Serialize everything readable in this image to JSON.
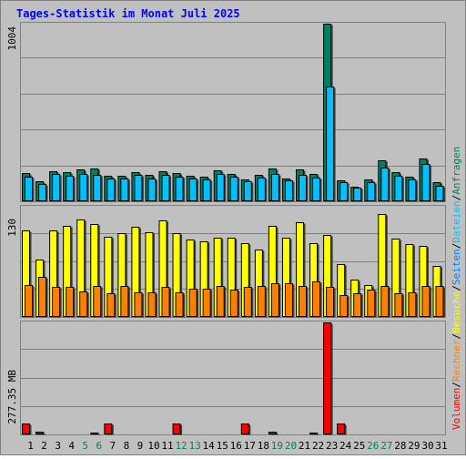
{
  "title": "Tages-Statistik im Monat Juli 2025",
  "colors": {
    "background": "#C0C0C0",
    "frame": "#808080",
    "title": "#0000FF",
    "anfragen": "#008060",
    "dateien": "#00C0FF",
    "seiten": "#0080FF",
    "besuche": "#FFFF00",
    "rechner": "#FF8000",
    "volumen": "#FF0000",
    "weekend_day": "#00805C",
    "weekday": "#000000"
  },
  "chart_data": [
    {
      "type": "bar",
      "panel": "top",
      "ymax_label": "1004",
      "ylim": [
        0,
        1004
      ],
      "categories": [
        "1",
        "2",
        "3",
        "4",
        "5",
        "6",
        "7",
        "8",
        "9",
        "10",
        "11",
        "12",
        "13",
        "14",
        "15",
        "16",
        "17",
        "18",
        "19",
        "20",
        "21",
        "22",
        "23",
        "24",
        "25",
        "26",
        "27",
        "28",
        "29",
        "30",
        "31"
      ],
      "series": [
        {
          "name": "Anfragen",
          "values": [
            158,
            114,
            171,
            166,
            178,
            183,
            146,
            146,
            166,
            147,
            168,
            158,
            146,
            138,
            177,
            157,
            122,
            150,
            187,
            131,
            180,
            153,
            1004,
            118,
            84,
            121,
            230,
            167,
            138,
            244,
            107
          ]
        },
        {
          "name": "Dateien",
          "values": [
            137,
            96,
            152,
            146,
            155,
            151,
            129,
            127,
            151,
            129,
            150,
            141,
            128,
            122,
            152,
            140,
            111,
            134,
            153,
            117,
            150,
            136,
            650,
            106,
            77,
            106,
            188,
            143,
            125,
            209,
            89
          ]
        }
      ]
    },
    {
      "type": "bar",
      "panel": "middle",
      "ymax_label": "130",
      "ylim": [
        0,
        130
      ],
      "categories": [
        "1",
        "2",
        "3",
        "4",
        "5",
        "6",
        "7",
        "8",
        "9",
        "10",
        "11",
        "12",
        "13",
        "14",
        "15",
        "16",
        "17",
        "18",
        "19",
        "20",
        "21",
        "22",
        "23",
        "24",
        "25",
        "26",
        "27",
        "28",
        "29",
        "30",
        "31"
      ],
      "series": [
        {
          "name": "Besuche",
          "values": [
            102,
            68,
            102,
            107,
            115,
            110,
            95,
            99,
            106,
            100,
            114,
            99,
            91,
            89,
            94,
            94,
            87,
            80,
            107,
            93,
            112,
            87,
            97,
            62,
            44,
            38,
            121,
            92,
            86,
            84,
            60
          ]
        },
        {
          "name": "Rechner",
          "values": [
            38,
            47,
            35,
            35,
            30,
            37,
            28,
            37,
            29,
            29,
            35,
            29,
            33,
            33,
            36,
            32,
            35,
            37,
            40,
            40,
            37,
            42,
            35,
            26,
            28,
            32,
            37,
            28,
            29,
            37,
            36
          ]
        }
      ]
    },
    {
      "type": "bar",
      "panel": "bottom",
      "ymax_label": "277.35 MB",
      "ylim": [
        0,
        277.35
      ],
      "categories": [
        "1",
        "2",
        "3",
        "4",
        "5",
        "6",
        "7",
        "8",
        "9",
        "10",
        "11",
        "12",
        "13",
        "14",
        "15",
        "16",
        "17",
        "18",
        "19",
        "20",
        "21",
        "22",
        "23",
        "24",
        "25",
        "26",
        "27",
        "28",
        "29",
        "30",
        "31"
      ],
      "series": [
        {
          "name": "Volumen",
          "values": [
            27,
            6,
            2,
            2,
            2,
            5,
            26,
            2,
            2,
            2,
            2,
            27,
            2,
            2,
            2,
            2,
            26,
            2,
            7,
            2,
            2,
            4,
            277.35,
            26,
            2,
            2,
            2,
            2,
            2,
            2,
            2
          ]
        }
      ]
    }
  ],
  "x_labels": [
    "1",
    "2",
    "3",
    "4",
    "5",
    "6",
    "7",
    "8",
    "9",
    "10",
    "11",
    "12",
    "13",
    "14",
    "15",
    "16",
    "17",
    "18",
    "19",
    "20",
    "21",
    "22",
    "23",
    "24",
    "25",
    "26",
    "27",
    "28",
    "29",
    "30",
    "31"
  ],
  "weekend_days": [
    5,
    6,
    12,
    13,
    19,
    20,
    26,
    27
  ],
  "right_legend": [
    "Volumen",
    "/",
    "Rechner",
    "/",
    "Besuche",
    "/",
    "Seiten",
    "/",
    "Dateien",
    "/",
    "Anfragen"
  ]
}
